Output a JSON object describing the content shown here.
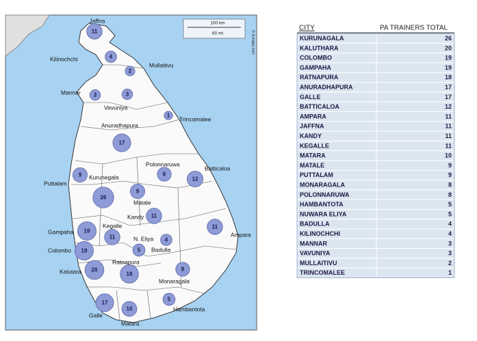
{
  "map": {
    "scale": [
      "100 km",
      "60 mi"
    ],
    "credit": "© d-maps.com",
    "places": [
      {
        "name": "Jaffna",
        "value": 11
      },
      {
        "name": "Kilinochchi",
        "value": 4
      },
      {
        "name": "Mullaitivu",
        "value": 2
      },
      {
        "name": "Mannar",
        "value": 3
      },
      {
        "name": "Vavuniya",
        "value": 3
      },
      {
        "name": "Trincomalee",
        "value": 1
      },
      {
        "name": "Anuradhapura",
        "value": 17
      },
      {
        "name": "Polonnaruwa",
        "value": 8
      },
      {
        "name": "Batticaloa",
        "value": 12
      },
      {
        "name": "Puttalam",
        "value": 9
      },
      {
        "name": "Kurunegala",
        "value": 26
      },
      {
        "name": "Matale",
        "value": 9
      },
      {
        "name": "Kandy",
        "value": 11
      },
      {
        "name": "Ampara",
        "value": 11
      },
      {
        "name": "Gampaha",
        "value": 19
      },
      {
        "name": "Kegalle",
        "value": 11
      },
      {
        "name": "N. Eliya",
        "value": 5
      },
      {
        "name": "Badulla",
        "value": 4
      },
      {
        "name": "Colombo",
        "value": 19
      },
      {
        "name": "Ratnapura",
        "value": 18
      },
      {
        "name": "Kalutara",
        "value": 20
      },
      {
        "name": "Monaragala",
        "value": 8
      },
      {
        "name": "Galle",
        "value": 17
      },
      {
        "name": "Matara",
        "value": 10
      },
      {
        "name": "Hambantota",
        "value": 5
      }
    ]
  },
  "table": {
    "header": [
      "CITY",
      "PA TRAINERS TOTAL"
    ],
    "rows": [
      [
        "KURUNAGALA",
        26
      ],
      [
        "KALUTHARA",
        20
      ],
      [
        "COLOMBO",
        19
      ],
      [
        "GAMPAHA",
        19
      ],
      [
        "RATNAPURA",
        18
      ],
      [
        "ANURADHAPURA",
        17
      ],
      [
        "GALLE",
        17
      ],
      [
        "BATTICALOA",
        12
      ],
      [
        "AMPARA",
        11
      ],
      [
        "JAFFNA",
        11
      ],
      [
        "KANDY",
        11
      ],
      [
        "KEGALLE",
        11
      ],
      [
        "MATARA",
        10
      ],
      [
        "MATALE",
        9
      ],
      [
        "PUTTALAM",
        9
      ],
      [
        "MONARAGALA",
        8
      ],
      [
        "POLONNARUWA",
        8
      ],
      [
        "HAMBANTOTA",
        5
      ],
      [
        "NUWARA ELIYA",
        5
      ],
      [
        "BADULLA",
        4
      ],
      [
        "KILINOCHCHI",
        4
      ],
      [
        "MANNAR",
        3
      ],
      [
        "VAVUNIYA",
        3
      ],
      [
        "MULLAITIVU",
        2
      ],
      [
        "TRINCOMALEE",
        1
      ]
    ]
  }
}
